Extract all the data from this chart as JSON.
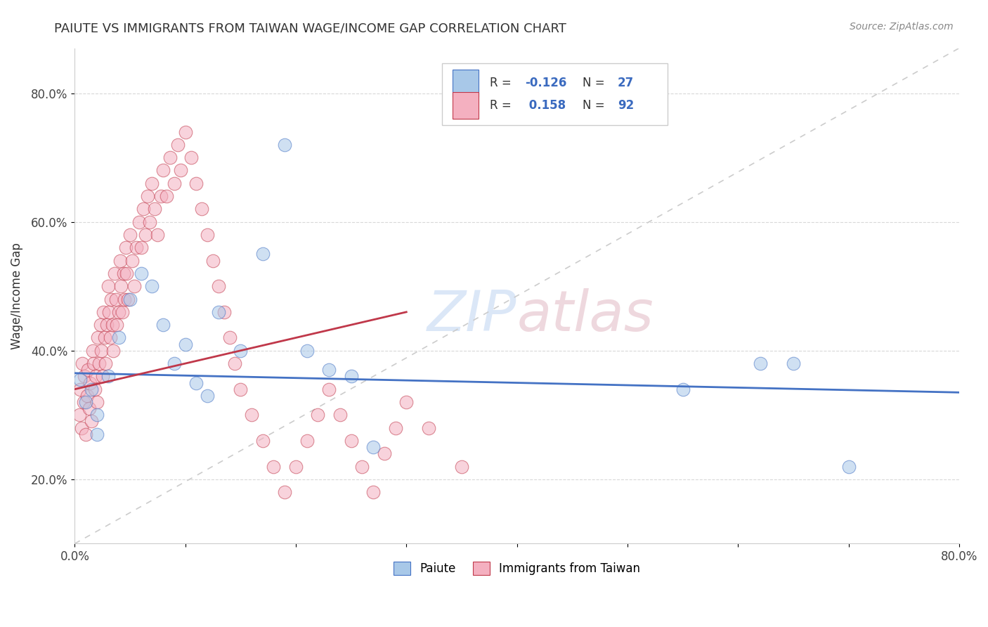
{
  "title": "PAIUTE VS IMMIGRANTS FROM TAIWAN WAGE/INCOME GAP CORRELATION CHART",
  "source": "Source: ZipAtlas.com",
  "ylabel": "Wage/Income Gap",
  "xlim": [
    0.0,
    0.8
  ],
  "ylim": [
    0.1,
    0.87
  ],
  "color_blue": "#a8c8e8",
  "color_pink": "#f4b0c0",
  "trendline_blue": "#4472c4",
  "trendline_pink": "#c0384a",
  "dashed_color": "#cccccc",
  "background_color": "#ffffff",
  "paiute_x": [
    0.005,
    0.01,
    0.015,
    0.02,
    0.02,
    0.03,
    0.04,
    0.05,
    0.06,
    0.07,
    0.08,
    0.09,
    0.1,
    0.11,
    0.12,
    0.13,
    0.15,
    0.17,
    0.19,
    0.21,
    0.23,
    0.25,
    0.27,
    0.55,
    0.62,
    0.65,
    0.7
  ],
  "paiute_y": [
    0.355,
    0.32,
    0.34,
    0.27,
    0.3,
    0.36,
    0.42,
    0.48,
    0.52,
    0.5,
    0.44,
    0.38,
    0.41,
    0.35,
    0.33,
    0.46,
    0.4,
    0.55,
    0.72,
    0.4,
    0.37,
    0.36,
    0.25,
    0.34,
    0.38,
    0.38,
    0.22
  ],
  "taiwan_x": [
    0.004,
    0.005,
    0.006,
    0.007,
    0.008,
    0.009,
    0.01,
    0.011,
    0.012,
    0.013,
    0.014,
    0.015,
    0.016,
    0.017,
    0.018,
    0.019,
    0.02,
    0.021,
    0.022,
    0.023,
    0.024,
    0.025,
    0.026,
    0.027,
    0.028,
    0.029,
    0.03,
    0.031,
    0.032,
    0.033,
    0.034,
    0.035,
    0.036,
    0.037,
    0.038,
    0.04,
    0.041,
    0.042,
    0.043,
    0.044,
    0.045,
    0.046,
    0.047,
    0.048,
    0.05,
    0.052,
    0.054,
    0.056,
    0.058,
    0.06,
    0.062,
    0.064,
    0.066,
    0.068,
    0.07,
    0.072,
    0.075,
    0.078,
    0.08,
    0.083,
    0.086,
    0.09,
    0.093,
    0.096,
    0.1,
    0.105,
    0.11,
    0.115,
    0.12,
    0.125,
    0.13,
    0.135,
    0.14,
    0.145,
    0.15,
    0.16,
    0.17,
    0.18,
    0.19,
    0.2,
    0.21,
    0.22,
    0.23,
    0.24,
    0.25,
    0.26,
    0.27,
    0.28,
    0.29,
    0.3,
    0.32,
    0.35
  ],
  "taiwan_y": [
    0.3,
    0.34,
    0.28,
    0.38,
    0.32,
    0.36,
    0.27,
    0.33,
    0.37,
    0.31,
    0.35,
    0.29,
    0.4,
    0.38,
    0.34,
    0.36,
    0.32,
    0.42,
    0.38,
    0.44,
    0.4,
    0.36,
    0.46,
    0.42,
    0.38,
    0.44,
    0.5,
    0.46,
    0.42,
    0.48,
    0.44,
    0.4,
    0.52,
    0.48,
    0.44,
    0.46,
    0.54,
    0.5,
    0.46,
    0.52,
    0.48,
    0.56,
    0.52,
    0.48,
    0.58,
    0.54,
    0.5,
    0.56,
    0.6,
    0.56,
    0.62,
    0.58,
    0.64,
    0.6,
    0.66,
    0.62,
    0.58,
    0.64,
    0.68,
    0.64,
    0.7,
    0.66,
    0.72,
    0.68,
    0.74,
    0.7,
    0.66,
    0.62,
    0.58,
    0.54,
    0.5,
    0.46,
    0.42,
    0.38,
    0.34,
    0.3,
    0.26,
    0.22,
    0.18,
    0.22,
    0.26,
    0.3,
    0.34,
    0.3,
    0.26,
    0.22,
    0.18,
    0.24,
    0.28,
    0.32,
    0.28,
    0.22
  ],
  "blue_trend": [
    0.365,
    0.335
  ],
  "pink_trend_start_x": 0.0,
  "pink_trend_end_x": 0.3,
  "pink_trend": [
    0.34,
    0.46
  ]
}
